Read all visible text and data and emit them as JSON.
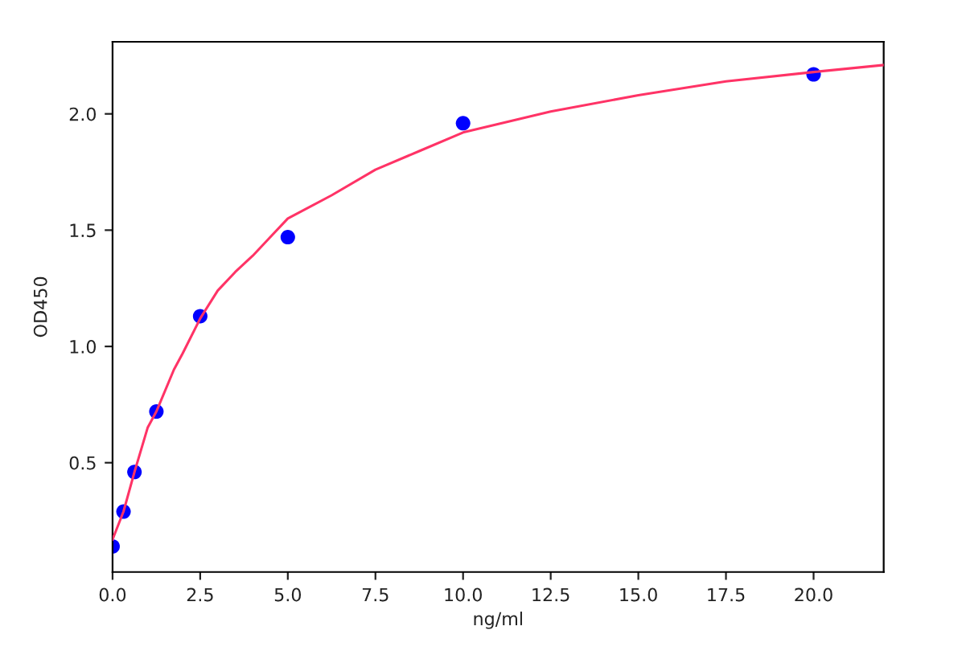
{
  "chart_data": {
    "type": "scatter",
    "xlabel": "ng/ml",
    "ylabel": "OD450",
    "xlim": [
      0,
      22
    ],
    "ylim": [
      0.03,
      2.31
    ],
    "xticks": [
      {
        "value": 0,
        "label": "0.0"
      },
      2.5,
      {
        "value": 5,
        "label": "5.0"
      },
      7.5,
      {
        "value": 10,
        "label": "10.0"
      },
      12.5,
      {
        "value": 15,
        "label": "15.0"
      },
      17.5,
      {
        "value": 20,
        "label": "20.0"
      }
    ],
    "yticks": [
      0.5,
      {
        "value": 1,
        "label": "1.0"
      },
      1.5,
      {
        "value": 2,
        "label": "2.0"
      }
    ],
    "series": [
      {
        "color": "#0000ff",
        "marker": "circle",
        "x": [
          0,
          0.3125,
          0.625,
          1.25,
          2.5,
          5,
          10,
          20
        ],
        "values": [
          0.14,
          0.29,
          0.46,
          0.72,
          1.13,
          1.47,
          1.96,
          2.17
        ]
      },
      {
        "type": "line",
        "color": "#ff3366",
        "marker": "none",
        "x": [
          0,
          0.3125,
          0.625,
          1,
          1.25,
          1.75,
          2,
          2.5,
          3,
          3.5,
          4,
          4.5,
          5,
          6.25,
          7.5,
          8.75,
          10,
          12.5,
          15,
          17.5,
          20,
          22
        ],
        "values": [
          0.17,
          0.29,
          0.46,
          0.65,
          0.72,
          0.9,
          0.97,
          1.12,
          1.24,
          1.32,
          1.39,
          1.47,
          1.55,
          1.65,
          1.76,
          1.84,
          1.92,
          2.01,
          2.08,
          2.14,
          2.18,
          2.21
        ]
      }
    ]
  }
}
